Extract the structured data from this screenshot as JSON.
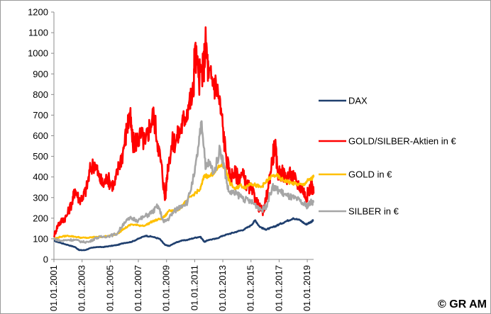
{
  "chart_data": {
    "type": "line",
    "title": "",
    "xlabel": "",
    "ylabel": "",
    "ylim": [
      0,
      1200
    ],
    "yticks": [
      0,
      100,
      200,
      300,
      400,
      500,
      600,
      700,
      800,
      900,
      1000,
      1100,
      1200
    ],
    "xlim": [
      2001.0,
      2019.45
    ],
    "xticks": [
      {
        "x": 2001,
        "label": "01.01.2001"
      },
      {
        "x": 2003,
        "label": "01.01.2003"
      },
      {
        "x": 2005,
        "label": "01.01.2005"
      },
      {
        "x": 2007,
        "label": "01.01.2007"
      },
      {
        "x": 2009,
        "label": "01.01.2009"
      },
      {
        "x": 2011,
        "label": "01.01.2011"
      },
      {
        "x": 2013,
        "label": "01.01.2013"
      },
      {
        "x": 2015,
        "label": "01.01.2015"
      },
      {
        "x": 2017,
        "label": "01.01.2017"
      },
      {
        "x": 2019,
        "label": "01.01.2019"
      }
    ],
    "grid": false,
    "legend_position": "right",
    "series": [
      {
        "name": "DAX",
        "color": "#1f3f6e",
        "points": [
          [
            2001.0,
            90
          ],
          [
            2001.5,
            80
          ],
          [
            2002.0,
            70
          ],
          [
            2002.5,
            60
          ],
          [
            2002.8,
            45
          ],
          [
            2003.2,
            45
          ],
          [
            2003.6,
            55
          ],
          [
            2004.0,
            60
          ],
          [
            2004.5,
            60
          ],
          [
            2005.0,
            65
          ],
          [
            2005.5,
            70
          ],
          [
            2006.0,
            80
          ],
          [
            2006.5,
            85
          ],
          [
            2007.0,
            100
          ],
          [
            2007.5,
            115
          ],
          [
            2008.0,
            110
          ],
          [
            2008.5,
            100
          ],
          [
            2008.9,
            70
          ],
          [
            2009.2,
            65
          ],
          [
            2009.6,
            80
          ],
          [
            2010.0,
            90
          ],
          [
            2010.5,
            95
          ],
          [
            2011.0,
            105
          ],
          [
            2011.4,
            110
          ],
          [
            2011.7,
            85
          ],
          [
            2012.0,
            95
          ],
          [
            2012.5,
            100
          ],
          [
            2013.0,
            115
          ],
          [
            2013.5,
            125
          ],
          [
            2014.0,
            135
          ],
          [
            2014.5,
            145
          ],
          [
            2015.0,
            165
          ],
          [
            2015.3,
            190
          ],
          [
            2015.6,
            160
          ],
          [
            2016.0,
            145
          ],
          [
            2016.3,
            150
          ],
          [
            2016.7,
            160
          ],
          [
            2017.0,
            170
          ],
          [
            2017.5,
            185
          ],
          [
            2018.0,
            200
          ],
          [
            2018.5,
            190
          ],
          [
            2018.9,
            170
          ],
          [
            2019.2,
            180
          ],
          [
            2019.45,
            190
          ]
        ]
      },
      {
        "name": "GOLD/SILBER-Aktien in €",
        "color": "#ff0000",
        "points": [
          [
            2001.0,
            115
          ],
          [
            2001.3,
            170
          ],
          [
            2001.6,
            190
          ],
          [
            2001.9,
            210
          ],
          [
            2002.3,
            280
          ],
          [
            2002.5,
            340
          ],
          [
            2002.8,
            290
          ],
          [
            2003.1,
            310
          ],
          [
            2003.3,
            340
          ],
          [
            2003.6,
            440
          ],
          [
            2003.9,
            470
          ],
          [
            2004.2,
            400
          ],
          [
            2004.5,
            360
          ],
          [
            2004.8,
            400
          ],
          [
            2005.0,
            370
          ],
          [
            2005.3,
            360
          ],
          [
            2005.6,
            450
          ],
          [
            2005.9,
            520
          ],
          [
            2006.2,
            640
          ],
          [
            2006.4,
            700
          ],
          [
            2006.6,
            560
          ],
          [
            2006.9,
            580
          ],
          [
            2007.2,
            600
          ],
          [
            2007.5,
            560
          ],
          [
            2007.8,
            650
          ],
          [
            2008.1,
            700
          ],
          [
            2008.4,
            560
          ],
          [
            2008.7,
            420
          ],
          [
            2008.9,
            290
          ],
          [
            2009.1,
            460
          ],
          [
            2009.4,
            560
          ],
          [
            2009.7,
            580
          ],
          [
            2010.0,
            630
          ],
          [
            2010.3,
            690
          ],
          [
            2010.6,
            760
          ],
          [
            2010.9,
            800
          ],
          [
            2011.0,
            1010
          ],
          [
            2011.3,
            880
          ],
          [
            2011.6,
            920
          ],
          [
            2011.8,
            1050
          ],
          [
            2012.0,
            880
          ],
          [
            2012.3,
            870
          ],
          [
            2012.6,
            830
          ],
          [
            2012.9,
            700
          ],
          [
            2013.2,
            520
          ],
          [
            2013.5,
            400
          ],
          [
            2013.8,
            420
          ],
          [
            2014.1,
            400
          ],
          [
            2014.4,
            410
          ],
          [
            2014.7,
            360
          ],
          [
            2015.0,
            340
          ],
          [
            2015.3,
            300
          ],
          [
            2015.6,
            250
          ],
          [
            2015.9,
            230
          ],
          [
            2016.2,
            340
          ],
          [
            2016.5,
            480
          ],
          [
            2016.7,
            560
          ],
          [
            2016.9,
            420
          ],
          [
            2017.2,
            420
          ],
          [
            2017.5,
            400
          ],
          [
            2017.8,
            410
          ],
          [
            2018.1,
            390
          ],
          [
            2018.4,
            360
          ],
          [
            2018.7,
            340
          ],
          [
            2018.9,
            300
          ],
          [
            2019.1,
            330
          ],
          [
            2019.3,
            360
          ],
          [
            2019.45,
            320
          ]
        ]
      },
      {
        "name": "GOLD in €",
        "color": "#ffc000",
        "points": [
          [
            2001.0,
            100
          ],
          [
            2001.5,
            110
          ],
          [
            2002.0,
            115
          ],
          [
            2002.5,
            110
          ],
          [
            2003.0,
            105
          ],
          [
            2003.5,
            105
          ],
          [
            2004.0,
            110
          ],
          [
            2004.5,
            110
          ],
          [
            2005.0,
            115
          ],
          [
            2005.5,
            125
          ],
          [
            2006.0,
            150
          ],
          [
            2006.5,
            170
          ],
          [
            2007.0,
            165
          ],
          [
            2007.5,
            165
          ],
          [
            2008.0,
            185
          ],
          [
            2008.5,
            195
          ],
          [
            2008.9,
            210
          ],
          [
            2009.2,
            240
          ],
          [
            2009.6,
            235
          ],
          [
            2010.0,
            250
          ],
          [
            2010.5,
            290
          ],
          [
            2011.0,
            320
          ],
          [
            2011.4,
            340
          ],
          [
            2011.7,
            410
          ],
          [
            2012.0,
            400
          ],
          [
            2012.5,
            430
          ],
          [
            2012.9,
            460
          ],
          [
            2013.2,
            440
          ],
          [
            2013.5,
            370
          ],
          [
            2013.9,
            340
          ],
          [
            2014.2,
            360
          ],
          [
            2014.6,
            350
          ],
          [
            2015.0,
            370
          ],
          [
            2015.3,
            360
          ],
          [
            2015.7,
            350
          ],
          [
            2016.0,
            370
          ],
          [
            2016.4,
            400
          ],
          [
            2016.8,
            410
          ],
          [
            2017.1,
            390
          ],
          [
            2017.5,
            380
          ],
          [
            2017.9,
            370
          ],
          [
            2018.3,
            365
          ],
          [
            2018.7,
            360
          ],
          [
            2019.0,
            380
          ],
          [
            2019.3,
            390
          ],
          [
            2019.45,
            400
          ]
        ]
      },
      {
        "name": "SILBER in €",
        "color": "#a6a6a6",
        "points": [
          [
            2001.0,
            100
          ],
          [
            2001.5,
            90
          ],
          [
            2002.0,
            95
          ],
          [
            2002.5,
            95
          ],
          [
            2003.0,
            85
          ],
          [
            2003.5,
            85
          ],
          [
            2004.0,
            105
          ],
          [
            2004.5,
            110
          ],
          [
            2005.0,
            115
          ],
          [
            2005.5,
            125
          ],
          [
            2006.0,
            180
          ],
          [
            2006.5,
            200
          ],
          [
            2007.0,
            190
          ],
          [
            2007.5,
            210
          ],
          [
            2008.0,
            230
          ],
          [
            2008.4,
            260
          ],
          [
            2008.8,
            180
          ],
          [
            2009.1,
            195
          ],
          [
            2009.5,
            230
          ],
          [
            2010.0,
            260
          ],
          [
            2010.5,
            280
          ],
          [
            2011.0,
            420
          ],
          [
            2011.3,
            560
          ],
          [
            2011.5,
            670
          ],
          [
            2011.8,
            440
          ],
          [
            2012.0,
            470
          ],
          [
            2012.4,
            420
          ],
          [
            2012.8,
            540
          ],
          [
            2013.1,
            450
          ],
          [
            2013.4,
            330
          ],
          [
            2013.8,
            320
          ],
          [
            2014.2,
            310
          ],
          [
            2014.6,
            290
          ],
          [
            2015.0,
            280
          ],
          [
            2015.4,
            260
          ],
          [
            2015.8,
            240
          ],
          [
            2016.1,
            260
          ],
          [
            2016.5,
            350
          ],
          [
            2016.8,
            340
          ],
          [
            2017.1,
            330
          ],
          [
            2017.5,
            310
          ],
          [
            2017.9,
            300
          ],
          [
            2018.3,
            290
          ],
          [
            2018.7,
            270
          ],
          [
            2019.0,
            260
          ],
          [
            2019.3,
            280
          ],
          [
            2019.45,
            275
          ]
        ]
      }
    ]
  },
  "copyright": "© GR AM"
}
